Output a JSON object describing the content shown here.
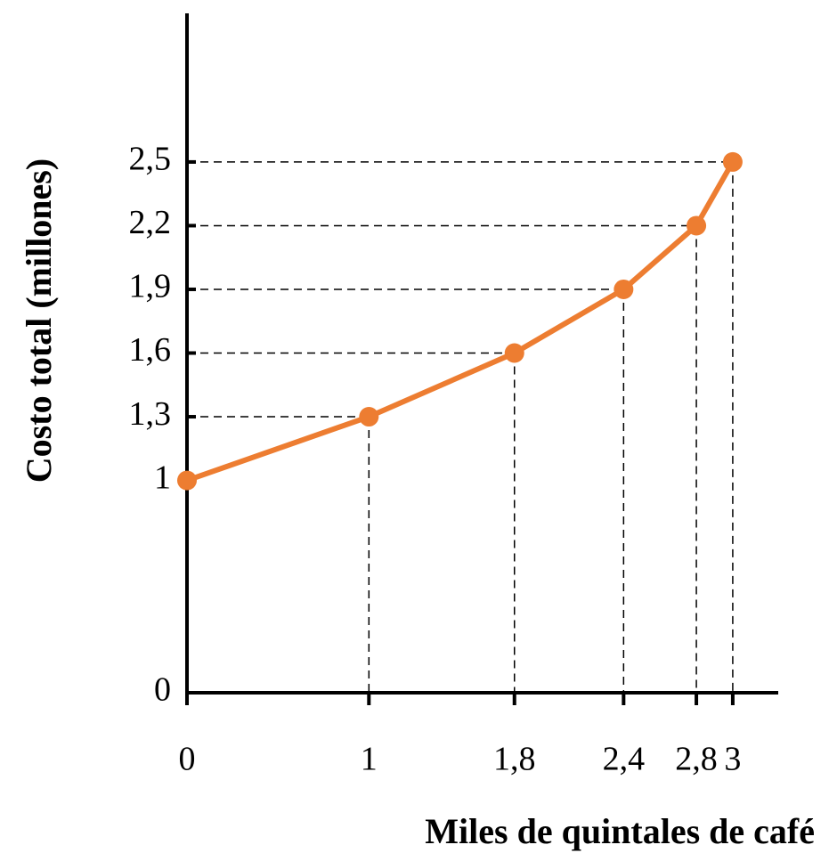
{
  "chart_data": {
    "type": "line",
    "x_label": "Miles de quintales de café",
    "y_label": "Costo total (millones)",
    "x": [
      0,
      1,
      1.8,
      2.4,
      2.8,
      3
    ],
    "series": [
      {
        "name": "Costo total",
        "color": "#ed7d31",
        "values": [
          1,
          1.3,
          1.6,
          1.9,
          2.2,
          2.5
        ]
      }
    ],
    "xlim": [
      0,
      3.25
    ],
    "xticks": [
      0,
      1,
      {
        "value": 1.8,
        "label": "1,8"
      },
      {
        "value": 2.4,
        "label": "2,4"
      },
      {
        "value": 2.8,
        "label": "2,8"
      },
      3
    ],
    "ylim": [
      0,
      3.2
    ],
    "yticks": [
      0,
      1,
      {
        "value": 1.3,
        "label": "1,3"
      },
      {
        "value": 1.6,
        "label": "1,6"
      },
      {
        "value": 1.9,
        "label": "1,9"
      },
      {
        "value": 2.2,
        "label": "2,2"
      },
      {
        "value": 2.5,
        "label": "2,5"
      }
    ],
    "guides": true
  }
}
